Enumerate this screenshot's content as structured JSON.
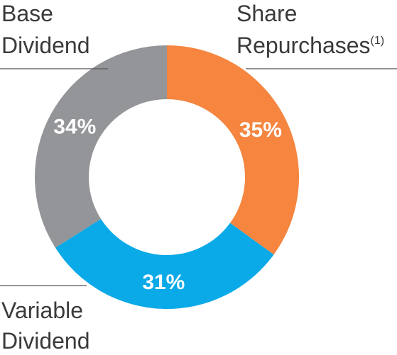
{
  "chart_data": {
    "type": "pie",
    "donut": true,
    "start_category": "Share Repurchases",
    "direction": "clockwise",
    "slices": [
      {
        "name": "Share Repurchases",
        "footnote": "(1)",
        "value": 35,
        "label": "35%",
        "color": "#f5853f"
      },
      {
        "name": "Variable Dividend",
        "value": 31,
        "label": "31%",
        "color": "#0aa9e8"
      },
      {
        "name": "Base Dividend",
        "value": 34,
        "label": "34%",
        "color": "#939598"
      }
    ],
    "legend": {
      "share_repurchases": {
        "line1": "Share",
        "line2": "Repurchases",
        "footnote": "(1)"
      },
      "base_dividend": {
        "line1": "Base",
        "line2": "Dividend"
      },
      "variable_dividend": {
        "line1": "Variable",
        "line2": "Dividend"
      }
    }
  }
}
